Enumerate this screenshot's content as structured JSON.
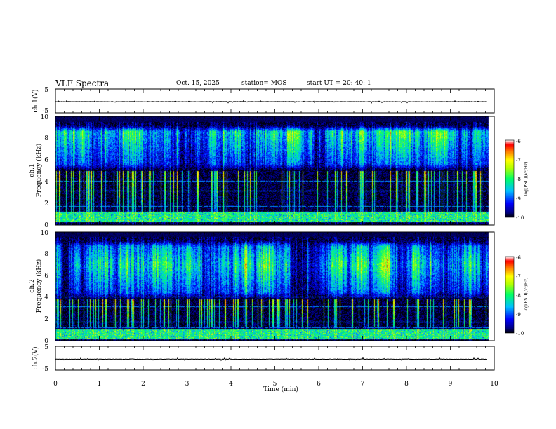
{
  "header": {
    "title": "VLF Spectra",
    "date": "Oct. 15, 2025",
    "station": "station= MOS",
    "start_ut": "start  UT =   20: 40: 1"
  },
  "chart_data": [
    {
      "type": "line",
      "name": "ch1-waveform",
      "ylabel": "ch.1(V)",
      "ylim": [
        -5,
        5
      ],
      "yticks": [
        "5",
        "-5"
      ],
      "xlim": [
        0,
        10
      ],
      "series": [
        {
          "name": "ch.1",
          "baseline": -0.3,
          "noise_amplitude": 0.3,
          "end_min": 9.85
        }
      ]
    },
    {
      "type": "heatmap",
      "name": "ch1-spectrogram",
      "ylabel_top": "ch.1",
      "ylabel": "Frequency (kHz)",
      "ylim": [
        0,
        10
      ],
      "yticks": [
        "0",
        "2",
        "4",
        "6",
        "8",
        "10"
      ],
      "xlim": [
        0,
        10
      ],
      "data_end_min": 9.85,
      "emission_band_khz": [
        5.0,
        9.2
      ],
      "band_peak_khz": 8.6,
      "low_band_khz": [
        0.2,
        1.2
      ],
      "colorbar": {
        "label": "log(PSD)(V²/Hz)",
        "range": [
          -10,
          -6
        ],
        "ticks": [
          "-6",
          "-7",
          "-8",
          "-9",
          "-10"
        ]
      }
    },
    {
      "type": "heatmap",
      "name": "ch2-spectrogram",
      "ylabel_top": "ch.2",
      "ylabel": "Frequency (kHz)",
      "ylim": [
        0,
        10
      ],
      "yticks": [
        "0",
        "2",
        "4",
        "6",
        "8",
        "10"
      ],
      "xlim": [
        0,
        10
      ],
      "data_end_min": 9.85,
      "emission_band_khz": [
        3.8,
        9.3
      ],
      "band_peak_khz": 7.0,
      "low_band_khz": [
        0.1,
        1.0
      ],
      "colorbar": {
        "label": "log(PSD)(V²/Hz)",
        "range": [
          -10,
          -6
        ],
        "ticks": [
          "-6",
          "-7",
          "-8",
          "-9",
          "-10"
        ]
      }
    },
    {
      "type": "line",
      "name": "ch2-waveform",
      "ylabel": "ch.2(V)",
      "ylim": [
        -5,
        5
      ],
      "yticks": [
        "5",
        "-5"
      ],
      "xlim": [
        0,
        10
      ],
      "xlabel": "Time (min)",
      "xticks": [
        "0",
        "1",
        "2",
        "3",
        "4",
        "5",
        "6",
        "7",
        "8",
        "9",
        "10"
      ],
      "series": [
        {
          "name": "ch.2",
          "baseline": -0.4,
          "noise_amplitude": 0.3,
          "end_min": 9.85
        }
      ]
    }
  ]
}
